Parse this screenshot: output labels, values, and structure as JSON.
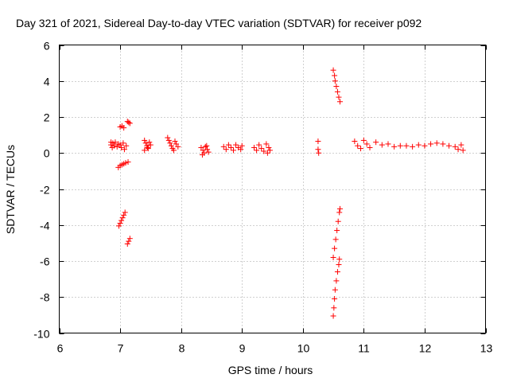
{
  "chart_data": {
    "type": "scatter",
    "title": "Day 321 of 2021, Sidereal Day-to-day VTEC variation (SDTVAR) for receiver p092",
    "xlabel": "GPS time / hours",
    "ylabel": "SDTVAR / TECUs",
    "xlim": [
      6,
      13
    ],
    "ylim": [
      -10,
      6
    ],
    "xticks": [
      6,
      7,
      8,
      9,
      10,
      11,
      12,
      13
    ],
    "yticks": [
      -10,
      -8,
      -6,
      -4,
      -2,
      0,
      2,
      4,
      6
    ],
    "grid": true,
    "marker": "+",
    "marker_color": "#ff0000",
    "series": [
      {
        "name": "SDTVAR",
        "points": [
          [
            6.85,
            0.6
          ],
          [
            6.85,
            0.45
          ],
          [
            6.87,
            0.3
          ],
          [
            6.88,
            0.55
          ],
          [
            6.9,
            0.4
          ],
          [
            6.92,
            0.6
          ],
          [
            6.95,
            0.35
          ],
          [
            6.97,
            0.5
          ],
          [
            7.0,
            0.45
          ],
          [
            7.02,
            0.3
          ],
          [
            7.05,
            0.55
          ],
          [
            7.07,
            0.2
          ],
          [
            7.1,
            0.4
          ],
          [
            6.97,
            -0.8
          ],
          [
            7.0,
            -0.7
          ],
          [
            7.03,
            -0.65
          ],
          [
            7.06,
            -0.6
          ],
          [
            7.09,
            -0.55
          ],
          [
            7.13,
            -0.5
          ],
          [
            7.0,
            1.45
          ],
          [
            7.03,
            1.5
          ],
          [
            7.06,
            1.4
          ],
          [
            7.12,
            1.75
          ],
          [
            7.14,
            1.7
          ],
          [
            7.16,
            1.65
          ],
          [
            6.98,
            -4.05
          ],
          [
            7.0,
            -3.9
          ],
          [
            7.02,
            -3.75
          ],
          [
            7.04,
            -3.6
          ],
          [
            7.06,
            -3.45
          ],
          [
            7.08,
            -3.3
          ],
          [
            7.12,
            -5.05
          ],
          [
            7.14,
            -4.9
          ],
          [
            7.16,
            -4.75
          ],
          [
            7.4,
            0.7
          ],
          [
            7.42,
            0.55
          ],
          [
            7.44,
            0.4
          ],
          [
            7.46,
            0.25
          ],
          [
            7.48,
            0.6
          ],
          [
            7.5,
            0.45
          ],
          [
            7.45,
            0.3
          ],
          [
            7.4,
            0.15
          ],
          [
            7.78,
            0.85
          ],
          [
            7.8,
            0.7
          ],
          [
            7.82,
            0.55
          ],
          [
            7.84,
            0.4
          ],
          [
            7.86,
            0.25
          ],
          [
            7.9,
            0.65
          ],
          [
            7.92,
            0.5
          ],
          [
            7.95,
            0.35
          ],
          [
            7.88,
            0.15
          ],
          [
            8.33,
            0.3
          ],
          [
            8.36,
            0.15
          ],
          [
            8.38,
            0.0
          ],
          [
            8.4,
            0.35
          ],
          [
            8.43,
            0.2
          ],
          [
            8.45,
            0.05
          ],
          [
            8.35,
            -0.1
          ],
          [
            8.42,
            0.4
          ],
          [
            8.7,
            0.35
          ],
          [
            8.74,
            0.2
          ],
          [
            8.78,
            0.45
          ],
          [
            8.82,
            0.3
          ],
          [
            8.86,
            0.15
          ],
          [
            8.9,
            0.45
          ],
          [
            8.94,
            0.3
          ],
          [
            8.98,
            0.2
          ],
          [
            9.0,
            0.4
          ],
          [
            9.2,
            0.3
          ],
          [
            9.24,
            0.15
          ],
          [
            9.28,
            0.45
          ],
          [
            9.32,
            0.25
          ],
          [
            9.36,
            0.1
          ],
          [
            9.4,
            0.5
          ],
          [
            9.44,
            0.3
          ],
          [
            9.46,
            0.15
          ],
          [
            9.42,
            0.0
          ],
          [
            10.25,
            0.65
          ],
          [
            10.25,
            0.2
          ],
          [
            10.26,
            0.0
          ],
          [
            10.5,
            4.6
          ],
          [
            10.52,
            4.3
          ],
          [
            10.53,
            4.0
          ],
          [
            10.55,
            3.7
          ],
          [
            10.57,
            3.4
          ],
          [
            10.59,
            3.1
          ],
          [
            10.61,
            2.85
          ],
          [
            10.5,
            -5.8
          ],
          [
            10.52,
            -5.3
          ],
          [
            10.54,
            -4.8
          ],
          [
            10.56,
            -4.3
          ],
          [
            10.58,
            -3.8
          ],
          [
            10.6,
            -3.3
          ],
          [
            10.61,
            -3.1
          ],
          [
            10.5,
            -9.05
          ],
          [
            10.51,
            -8.6
          ],
          [
            10.52,
            -8.1
          ],
          [
            10.53,
            -7.6
          ],
          [
            10.55,
            -7.1
          ],
          [
            10.57,
            -6.6
          ],
          [
            10.59,
            -6.2
          ],
          [
            10.6,
            -5.9
          ],
          [
            10.85,
            0.65
          ],
          [
            10.9,
            0.4
          ],
          [
            10.95,
            0.25
          ],
          [
            11.0,
            0.7
          ],
          [
            11.05,
            0.5
          ],
          [
            11.1,
            0.3
          ],
          [
            11.2,
            0.6
          ],
          [
            11.3,
            0.45
          ],
          [
            11.4,
            0.5
          ],
          [
            11.5,
            0.35
          ],
          [
            11.6,
            0.4
          ],
          [
            11.7,
            0.4
          ],
          [
            11.8,
            0.35
          ],
          [
            11.9,
            0.45
          ],
          [
            12.0,
            0.4
          ],
          [
            12.1,
            0.5
          ],
          [
            12.2,
            0.55
          ],
          [
            12.3,
            0.5
          ],
          [
            12.4,
            0.4
          ],
          [
            12.5,
            0.35
          ],
          [
            12.55,
            0.2
          ],
          [
            12.6,
            0.45
          ],
          [
            12.63,
            0.15
          ]
        ]
      }
    ]
  }
}
